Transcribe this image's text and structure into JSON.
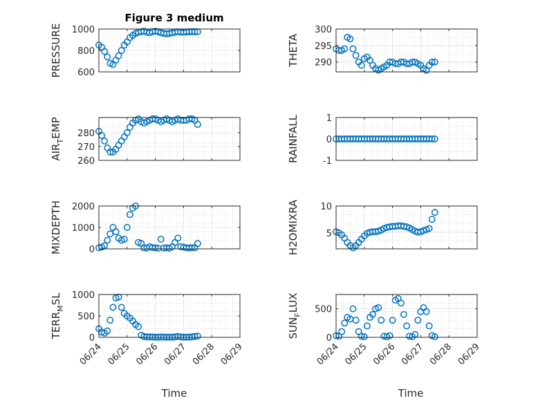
{
  "figure_title": "Figure 3 medium",
  "marker_color": "#0072BD",
  "chart_data": [
    {
      "type": "scatter",
      "ylabel": "PRESSURE",
      "title": "Figure 3 medium",
      "ylim": [
        600,
        1000
      ],
      "yticks": [
        600,
        800,
        1000
      ],
      "xlim": [
        0,
        5
      ],
      "grid": true,
      "x": [
        0,
        0.1,
        0.2,
        0.3,
        0.4,
        0.5,
        0.6,
        0.7,
        0.8,
        0.9,
        1.0,
        1.1,
        1.2,
        1.3,
        1.4,
        1.5,
        1.6,
        1.7,
        1.8,
        1.9,
        2.0,
        2.1,
        2.2,
        2.3,
        2.4,
        2.5,
        2.6,
        2.7,
        2.8,
        2.9,
        3.0,
        3.1,
        3.2,
        3.3,
        3.4,
        3.5
      ],
      "y": [
        850,
        830,
        790,
        740,
        680,
        670,
        710,
        750,
        800,
        850,
        880,
        920,
        940,
        960,
        970,
        975,
        980,
        970,
        965,
        975,
        980,
        975,
        965,
        960,
        955,
        960,
        965,
        970,
        975,
        970,
        970,
        972,
        975,
        975,
        975,
        975
      ]
    },
    {
      "type": "scatter",
      "ylabel": "THETA",
      "ylim": [
        287,
        300
      ],
      "yticks": [
        290,
        295,
        300
      ],
      "xlim": [
        0,
        5
      ],
      "grid": true,
      "x": [
        0,
        0.1,
        0.2,
        0.3,
        0.4,
        0.5,
        0.6,
        0.7,
        0.8,
        0.9,
        1.0,
        1.1,
        1.2,
        1.3,
        1.4,
        1.5,
        1.6,
        1.7,
        1.8,
        1.9,
        2.0,
        2.1,
        2.2,
        2.3,
        2.4,
        2.5,
        2.6,
        2.7,
        2.8,
        2.9,
        3.0,
        3.1,
        3.2,
        3.3,
        3.4,
        3.5
      ],
      "y": [
        294,
        293.5,
        293.5,
        294,
        297.5,
        297,
        294,
        292,
        290,
        289,
        291,
        291.5,
        290.5,
        289,
        288,
        287.5,
        288,
        288.5,
        289,
        290,
        290,
        289.5,
        289.5,
        290,
        290,
        289.5,
        289.5,
        290,
        290,
        289.5,
        289,
        288,
        287.5,
        289,
        290,
        290
      ]
    },
    {
      "type": "scatter",
      "ylabel": "AIR_TEMP",
      "ylabel_main": "AIR",
      "ylabel_sub": "T",
      "ylabel_rest": "EMP",
      "ylim": [
        260,
        291
      ],
      "yticks": [
        260,
        270,
        280
      ],
      "xlim": [
        0,
        5
      ],
      "grid": true,
      "x": [
        0,
        0.1,
        0.2,
        0.3,
        0.4,
        0.5,
        0.6,
        0.7,
        0.8,
        0.9,
        1.0,
        1.1,
        1.2,
        1.3,
        1.4,
        1.5,
        1.6,
        1.7,
        1.8,
        1.9,
        2.0,
        2.1,
        2.2,
        2.3,
        2.4,
        2.5,
        2.6,
        2.7,
        2.8,
        2.9,
        3.0,
        3.1,
        3.2,
        3.3,
        3.4,
        3.5
      ],
      "y": [
        281,
        278,
        274,
        269,
        266,
        266,
        268,
        271,
        274,
        277,
        280,
        284,
        287,
        289,
        290,
        288,
        287,
        288,
        289,
        290,
        290,
        289,
        288,
        289,
        290,
        289,
        288,
        289,
        290,
        289,
        289,
        289,
        290,
        290,
        289,
        286
      ]
    },
    {
      "type": "scatter",
      "ylabel": "RAINFALL",
      "ylim": [
        -1,
        1
      ],
      "yticks": [
        -1,
        0,
        1
      ],
      "xlim": [
        0,
        5
      ],
      "grid": true,
      "x": [
        0,
        0.1,
        0.2,
        0.3,
        0.4,
        0.5,
        0.6,
        0.7,
        0.8,
        0.9,
        1.0,
        1.1,
        1.2,
        1.3,
        1.4,
        1.5,
        1.6,
        1.7,
        1.8,
        1.9,
        2.0,
        2.1,
        2.2,
        2.3,
        2.4,
        2.5,
        2.6,
        2.7,
        2.8,
        2.9,
        3.0,
        3.1,
        3.2,
        3.3,
        3.4,
        3.5
      ],
      "y": [
        0,
        0,
        0,
        0,
        0,
        0,
        0,
        0,
        0,
        0,
        0,
        0,
        0,
        0,
        0,
        0,
        0,
        0,
        0,
        0,
        0,
        0,
        0,
        0,
        0,
        0,
        0,
        0,
        0,
        0,
        0,
        0,
        0,
        0,
        0,
        0
      ]
    },
    {
      "type": "scatter",
      "ylabel": "MIXDEPTH",
      "ylim": [
        0,
        2000
      ],
      "yticks": [
        0,
        1000,
        2000
      ],
      "xlim": [
        0,
        5
      ],
      "grid": true,
      "x": [
        0,
        0.1,
        0.2,
        0.3,
        0.4,
        0.5,
        0.6,
        0.7,
        0.8,
        0.9,
        1.0,
        1.1,
        1.2,
        1.3,
        1.4,
        1.5,
        1.6,
        1.7,
        1.8,
        1.9,
        2.0,
        2.1,
        2.2,
        2.3,
        2.4,
        2.5,
        2.6,
        2.7,
        2.8,
        2.9,
        3.0,
        3.1,
        3.2,
        3.3,
        3.4,
        3.5
      ],
      "y": [
        50,
        80,
        150,
        400,
        700,
        1000,
        800,
        500,
        400,
        450,
        1000,
        1600,
        1900,
        2000,
        300,
        250,
        50,
        40,
        100,
        60,
        50,
        30,
        450,
        40,
        50,
        30,
        100,
        300,
        500,
        100,
        80,
        50,
        40,
        60,
        50,
        250
      ]
    },
    {
      "type": "scatter",
      "ylabel": "H2OMIXRA",
      "ylim": [
        2,
        10
      ],
      "yticks": [
        5,
        10
      ],
      "xlim": [
        0,
        5
      ],
      "grid": true,
      "x": [
        0,
        0.1,
        0.2,
        0.3,
        0.4,
        0.5,
        0.6,
        0.7,
        0.8,
        0.9,
        1.0,
        1.1,
        1.2,
        1.3,
        1.4,
        1.5,
        1.6,
        1.7,
        1.8,
        1.9,
        2.0,
        2.1,
        2.2,
        2.3,
        2.4,
        2.5,
        2.6,
        2.7,
        2.8,
        2.9,
        3.0,
        3.1,
        3.2,
        3.3,
        3.4,
        3.5
      ],
      "y": [
        5.2,
        5,
        4.6,
        4,
        3.2,
        2.6,
        2.2,
        2.6,
        3.2,
        3.8,
        4.4,
        4.9,
        5.1,
        5.2,
        5.2,
        5.3,
        5.5,
        5.8,
        6,
        6.1,
        6.2,
        6.2,
        6.3,
        6.3,
        6.2,
        6.1,
        5.9,
        5.6,
        5.3,
        5.1,
        5.2,
        5.4,
        5.6,
        5.8,
        7.5,
        8.8
      ]
    },
    {
      "type": "scatter",
      "ylabel": "TERR_MSL",
      "ylabel_main": "TERR",
      "ylabel_sub": "M",
      "ylabel_rest": "SL",
      "ylim": [
        0,
        1000
      ],
      "yticks": [
        0,
        500,
        1000
      ],
      "xlim": [
        0,
        5
      ],
      "grid": true,
      "x": [
        0,
        0.1,
        0.2,
        0.3,
        0.4,
        0.5,
        0.6,
        0.7,
        0.8,
        0.9,
        1.0,
        1.1,
        1.2,
        1.3,
        1.4,
        1.5,
        1.6,
        1.7,
        1.8,
        1.9,
        2.0,
        2.1,
        2.2,
        2.3,
        2.4,
        2.5,
        2.6,
        2.7,
        2.8,
        2.9,
        3.0,
        3.1,
        3.2,
        3.3,
        3.4,
        3.5
      ],
      "y": [
        200,
        120,
        100,
        150,
        400,
        700,
        920,
        940,
        700,
        560,
        500,
        450,
        380,
        300,
        250,
        50,
        20,
        10,
        10,
        8,
        5,
        5,
        10,
        5,
        5,
        5,
        5,
        10,
        20,
        10,
        5,
        5,
        5,
        10,
        20,
        30
      ]
    },
    {
      "type": "scatter",
      "ylabel": "SUN_FLUX",
      "ylabel_main": "SUN",
      "ylabel_sub": "F",
      "ylabel_rest": "LUX",
      "ylim": [
        0,
        750
      ],
      "yticks": [
        0,
        500
      ],
      "xlim": [
        0,
        5
      ],
      "grid": true,
      "x": [
        0,
        0.1,
        0.2,
        0.3,
        0.4,
        0.5,
        0.6,
        0.7,
        0.8,
        0.9,
        1.0,
        1.1,
        1.2,
        1.3,
        1.4,
        1.5,
        1.6,
        1.7,
        1.8,
        1.9,
        2.0,
        2.1,
        2.2,
        2.3,
        2.4,
        2.5,
        2.6,
        2.7,
        2.8,
        2.9,
        3.0,
        3.1,
        3.2,
        3.3,
        3.4,
        3.5
      ],
      "y": [
        30,
        20,
        100,
        250,
        350,
        320,
        500,
        300,
        100,
        20,
        10,
        200,
        350,
        400,
        500,
        520,
        300,
        20,
        10,
        30,
        300,
        650,
        680,
        600,
        400,
        200,
        20,
        10,
        50,
        300,
        450,
        520,
        450,
        200,
        30,
        10
      ]
    }
  ],
  "x_ticks": [
    "06/24",
    "06/25",
    "06/26",
    "06/27",
    "06/28",
    "06/29"
  ],
  "x_label": "Time"
}
